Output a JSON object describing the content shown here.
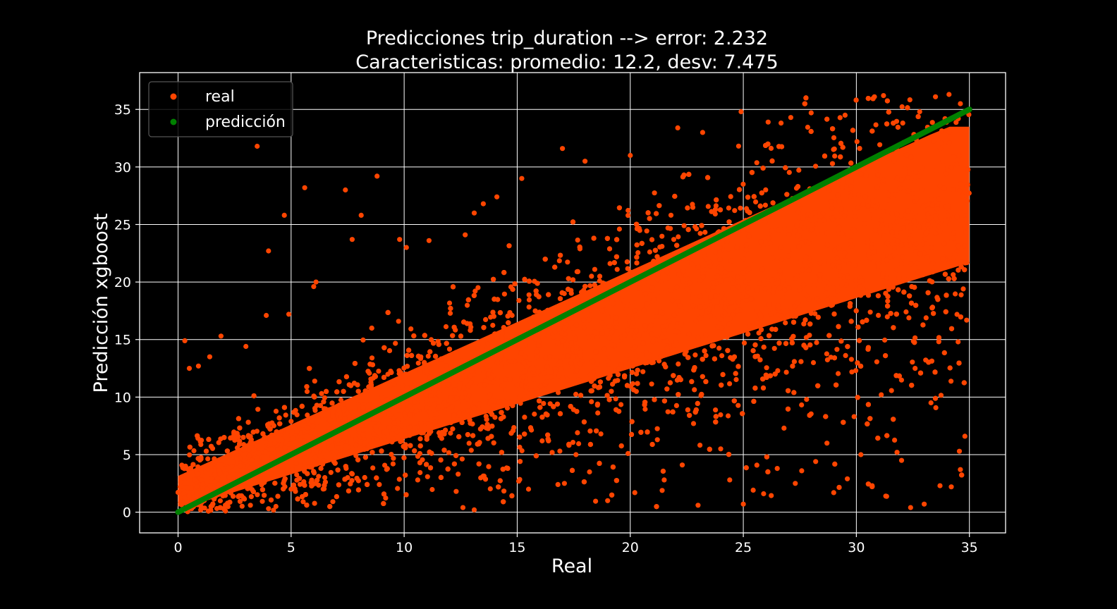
{
  "chart_data": {
    "type": "scatter",
    "title": "Predicciones trip_duration --> error: 2.232",
    "subtitle": "Caracteristicas: promedio: 12.2, desv: 7.475",
    "xlabel": "Real",
    "ylabel": "Predicción xgboost",
    "xlim": [
      -1.7,
      36.6
    ],
    "ylim": [
      -1.8,
      38.2
    ],
    "xticks": [
      0,
      5,
      10,
      15,
      20,
      25,
      30,
      35
    ],
    "yticks": [
      0,
      5,
      10,
      15,
      20,
      25,
      30,
      35
    ],
    "xtick_labels": [
      "0",
      "5",
      "10",
      "15",
      "20",
      "25",
      "30",
      "35"
    ],
    "ytick_labels": [
      "0",
      "5",
      "10",
      "15",
      "20",
      "25",
      "30",
      "35"
    ],
    "grid": true,
    "legend_position": "top-left",
    "colors": {
      "background": "#000000",
      "real": "#ff4500",
      "prediccion": "#008000",
      "grid": "#ffffff",
      "text": "#ffffff"
    },
    "series": [
      {
        "name": "real",
        "kind": "scatter",
        "trend": {
          "x_range": [
            0,
            35
          ],
          "y_center": [
            1.8,
            28.5
          ],
          "spread_min": 1.5,
          "spread_max": 6.5
        },
        "points": [
          [
            0.3,
            14.9
          ],
          [
            0.9,
            12.7
          ],
          [
            0.5,
            12.5
          ],
          [
            1.4,
            13.5
          ],
          [
            1.9,
            15.3
          ],
          [
            3.0,
            14.4
          ],
          [
            3.5,
            31.8
          ],
          [
            4.0,
            22.7
          ],
          [
            4.7,
            25.8
          ],
          [
            5.6,
            28.2
          ],
          [
            7.4,
            28.0
          ],
          [
            8.1,
            25.8
          ],
          [
            8.8,
            29.2
          ],
          [
            7.7,
            23.7
          ],
          [
            6.0,
            19.6
          ],
          [
            6.1,
            20.0
          ],
          [
            4.9,
            17.2
          ],
          [
            3.9,
            17.1
          ],
          [
            9.8,
            23.7
          ],
          [
            10.1,
            23.0
          ],
          [
            11.1,
            23.6
          ],
          [
            12.7,
            24.1
          ],
          [
            13.1,
            26.0
          ],
          [
            13.5,
            26.8
          ],
          [
            14.1,
            27.4
          ],
          [
            15.2,
            29.0
          ],
          [
            17.0,
            31.6
          ],
          [
            18.0,
            30.5
          ],
          [
            20.0,
            31.0
          ],
          [
            22.1,
            33.4
          ],
          [
            23.2,
            33.0
          ],
          [
            24.9,
            34.8
          ],
          [
            26.1,
            33.9
          ],
          [
            27.1,
            34.3
          ],
          [
            28.0,
            34.7
          ],
          [
            29.5,
            34.5
          ],
          [
            30.8,
            36.1
          ],
          [
            31.2,
            36.2
          ],
          [
            33.5,
            36.1
          ],
          [
            34.1,
            36.3
          ],
          [
            34.6,
            35.5
          ],
          [
            32.8,
            34.8
          ],
          [
            5.0,
            2.0
          ],
          [
            6.1,
            2.5
          ],
          [
            7.5,
            3.0
          ],
          [
            8.9,
            2.4
          ],
          [
            10.6,
            2.8
          ],
          [
            12.3,
            1.8
          ],
          [
            13.1,
            0.2
          ],
          [
            12.6,
            0.4
          ],
          [
            15.5,
            2.0
          ],
          [
            16.8,
            2.4
          ],
          [
            18.2,
            3.5
          ],
          [
            19.0,
            1.0
          ],
          [
            20.2,
            1.7
          ],
          [
            21.5,
            2.8
          ],
          [
            22.3,
            4.1
          ],
          [
            23.0,
            0.6
          ],
          [
            24.4,
            2.8
          ],
          [
            25.0,
            0.7
          ],
          [
            25.9,
            1.6
          ],
          [
            26.5,
            3.8
          ],
          [
            27.3,
            2.5
          ],
          [
            28.2,
            4.4
          ],
          [
            29.0,
            1.7
          ],
          [
            29.6,
            2.9
          ],
          [
            30.2,
            5.0
          ],
          [
            30.7,
            2.3
          ],
          [
            31.3,
            1.4
          ],
          [
            32.0,
            4.5
          ],
          [
            32.4,
            0.4
          ],
          [
            33.0,
            0.7
          ],
          [
            33.7,
            2.3
          ],
          [
            34.2,
            2.2
          ],
          [
            34.6,
            3.7
          ],
          [
            34.8,
            6.6
          ],
          [
            31.8,
            5.2
          ],
          [
            28.7,
            6.0
          ],
          [
            26.8,
            7.3
          ],
          [
            24.0,
            5.5
          ],
          [
            22.8,
            7.7
          ],
          [
            21.2,
            6.3
          ],
          [
            19.9,
            5.1
          ],
          [
            18.7,
            6.8
          ],
          [
            17.6,
            5.0
          ],
          [
            33.3,
            9.5
          ],
          [
            32.6,
            12.5
          ],
          [
            34.5,
            14.8
          ],
          [
            31.1,
            10.2
          ],
          [
            29.9,
            8.3
          ],
          [
            27.8,
            9.8
          ],
          [
            0.1,
            0.1
          ],
          [
            0.6,
            0.3
          ],
          [
            1.0,
            0.2
          ],
          [
            2.1,
            0.1
          ],
          [
            3.2,
            0.6
          ],
          [
            4.0,
            0.3
          ]
        ]
      },
      {
        "name": "predicción",
        "kind": "line",
        "x": [
          0,
          35
        ],
        "y": [
          0,
          35
        ]
      }
    ]
  }
}
